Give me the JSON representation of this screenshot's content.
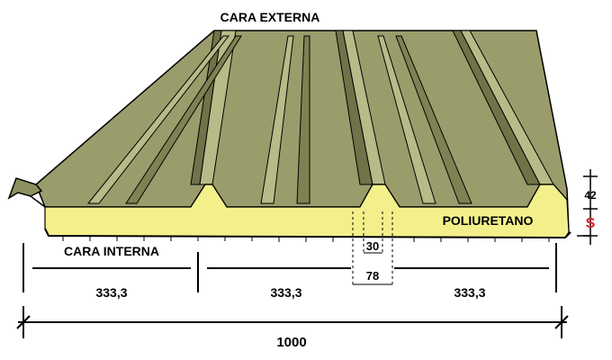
{
  "labels": {
    "top_face": "CARA EXTERNA",
    "bottom_face": "CARA INTERNA",
    "core": "POLIURETANO",
    "rib_top_width": "30",
    "rib_base_width": "78",
    "rib_height": "42",
    "thickness_symbol": "S",
    "module_1": "333,3",
    "module_2": "333,3",
    "module_3": "333,3",
    "total_width": "1000"
  },
  "colors": {
    "sheet_fill": "#9a9d6b",
    "sheet_dark": "#6f7348",
    "sheet_light": "#b8bb88",
    "core_fill": "#f3f08b",
    "outline": "#000000",
    "accent": "#e0202a"
  }
}
